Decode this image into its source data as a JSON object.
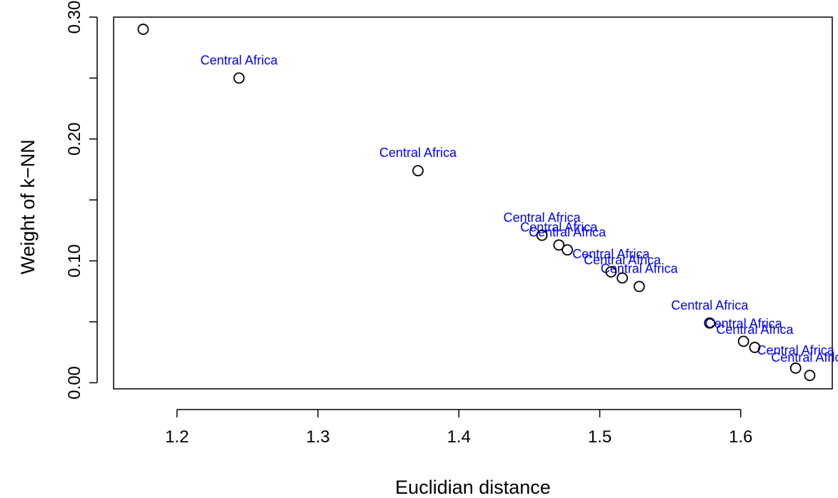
{
  "chart_data": {
    "type": "scatter",
    "title": "",
    "xlabel": "Euclidian distance",
    "ylabel": "Weight of k−NN",
    "xlim": [
      1.155,
      1.665
    ],
    "ylim": [
      -0.005,
      0.3
    ],
    "x_ticks": [
      {
        "value": 1.2,
        "label": "1.2"
      },
      {
        "value": 1.3,
        "label": "1.3"
      },
      {
        "value": 1.4,
        "label": "1.4"
      },
      {
        "value": 1.5,
        "label": "1.5"
      },
      {
        "value": 1.6,
        "label": "1.6"
      }
    ],
    "y_ticks": [
      {
        "value": 0.0,
        "label": "0.00"
      },
      {
        "value": 0.05,
        "label": ""
      },
      {
        "value": 0.1,
        "label": "0.10"
      },
      {
        "value": 0.15,
        "label": ""
      },
      {
        "value": 0.2,
        "label": "0.20"
      },
      {
        "value": 0.25,
        "label": ""
      },
      {
        "value": 0.3,
        "label": "0.30"
      }
    ],
    "label_color": "#0000ff",
    "point_color": "#000000",
    "grid": false,
    "points": [
      {
        "x": 1.176,
        "y": 0.29,
        "label": ""
      },
      {
        "x": 1.244,
        "y": 0.25,
        "label": "Central Africa"
      },
      {
        "x": 1.371,
        "y": 0.174,
        "label": "Central Africa"
      },
      {
        "x": 1.459,
        "y": 0.121,
        "label": "Central Africa"
      },
      {
        "x": 1.471,
        "y": 0.113,
        "label": "Central Africa"
      },
      {
        "x": 1.477,
        "y": 0.109,
        "label": "Central Africa"
      },
      {
        "x": 1.508,
        "y": 0.091,
        "label": "Central Africa"
      },
      {
        "x": 1.516,
        "y": 0.086,
        "label": "Central Africa"
      },
      {
        "x": 1.528,
        "y": 0.079,
        "label": "Central Africa"
      },
      {
        "x": 1.578,
        "y": 0.049,
        "label": "Central Africa"
      },
      {
        "x": 1.602,
        "y": 0.034,
        "label": "Central Africa"
      },
      {
        "x": 1.61,
        "y": 0.029,
        "label": "Central Africa"
      },
      {
        "x": 1.639,
        "y": 0.012,
        "label": "Central Africa"
      },
      {
        "x": 1.649,
        "y": 0.006,
        "label": "Central Africa"
      }
    ]
  }
}
